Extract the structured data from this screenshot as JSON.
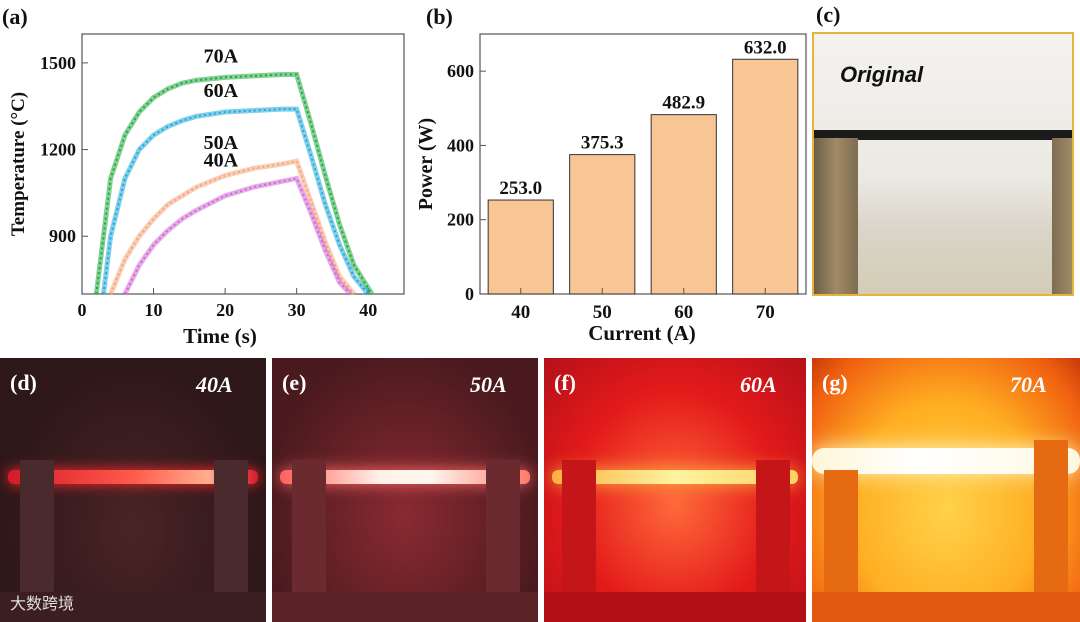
{
  "panels": {
    "a": "(a)",
    "b": "(b)",
    "c": "(c)",
    "d": "(d)",
    "e": "(e)",
    "f": "(f)",
    "g": "(g)"
  },
  "photo_c_caption": "Original",
  "photo_captions": [
    "40A",
    "50A",
    "60A",
    "70A"
  ],
  "watermark": "大数跨境",
  "chart_data": [
    {
      "type": "line",
      "title": "",
      "xlabel": "Time (s)",
      "ylabel": "Temperature (°C)",
      "xlim": [
        0,
        45
      ],
      "ylim": [
        700,
        1600
      ],
      "xticks": [
        0,
        10,
        20,
        30,
        40
      ],
      "yticks": [
        900,
        1200,
        1500
      ],
      "series": [
        {
          "name": "70A",
          "color": "#1faa3c",
          "x": [
            2,
            3,
            4,
            6,
            8,
            10,
            12,
            14,
            16,
            20,
            24,
            28,
            30,
            32,
            34,
            36,
            38,
            40.5
          ],
          "y": [
            700,
            900,
            1100,
            1250,
            1330,
            1380,
            1410,
            1430,
            1440,
            1450,
            1455,
            1460,
            1460,
            1290,
            1110,
            940,
            800,
            700
          ]
        },
        {
          "name": "60A",
          "color": "#1ea8d8",
          "x": [
            3,
            4,
            6,
            8,
            10,
            12,
            14,
            16,
            20,
            24,
            28,
            30,
            32,
            34,
            36,
            38,
            40
          ],
          "y": [
            700,
            900,
            1100,
            1200,
            1250,
            1280,
            1300,
            1315,
            1330,
            1335,
            1340,
            1340,
            1180,
            1010,
            870,
            760,
            700
          ]
        },
        {
          "name": "50A",
          "color": "#f5a47a",
          "x": [
            4,
            6,
            8,
            10,
            12,
            14,
            16,
            20,
            24,
            28,
            30,
            32,
            34,
            36,
            38
          ],
          "y": [
            700,
            820,
            900,
            960,
            1010,
            1040,
            1070,
            1110,
            1135,
            1150,
            1160,
            1020,
            880,
            760,
            700
          ]
        },
        {
          "name": "40A",
          "color": "#d066d6",
          "x": [
            6,
            8,
            10,
            12,
            14,
            16,
            20,
            24,
            28,
            30,
            32,
            34,
            36,
            37.5
          ],
          "y": [
            700,
            800,
            870,
            920,
            960,
            990,
            1040,
            1070,
            1090,
            1100,
            980,
            850,
            740,
            700
          ]
        }
      ]
    },
    {
      "type": "bar",
      "title": "",
      "xlabel": "Current (A)",
      "ylabel": "Power (W)",
      "categories": [
        "40",
        "50",
        "60",
        "70"
      ],
      "values": [
        253.0,
        375.3,
        482.9,
        632.0
      ],
      "value_labels": [
        "253.0",
        "375.3",
        "482.9",
        "632.0"
      ],
      "ylim": [
        0,
        700
      ],
      "yticks": [
        0,
        200,
        400,
        600
      ],
      "bar_color": "#f8c594"
    }
  ]
}
